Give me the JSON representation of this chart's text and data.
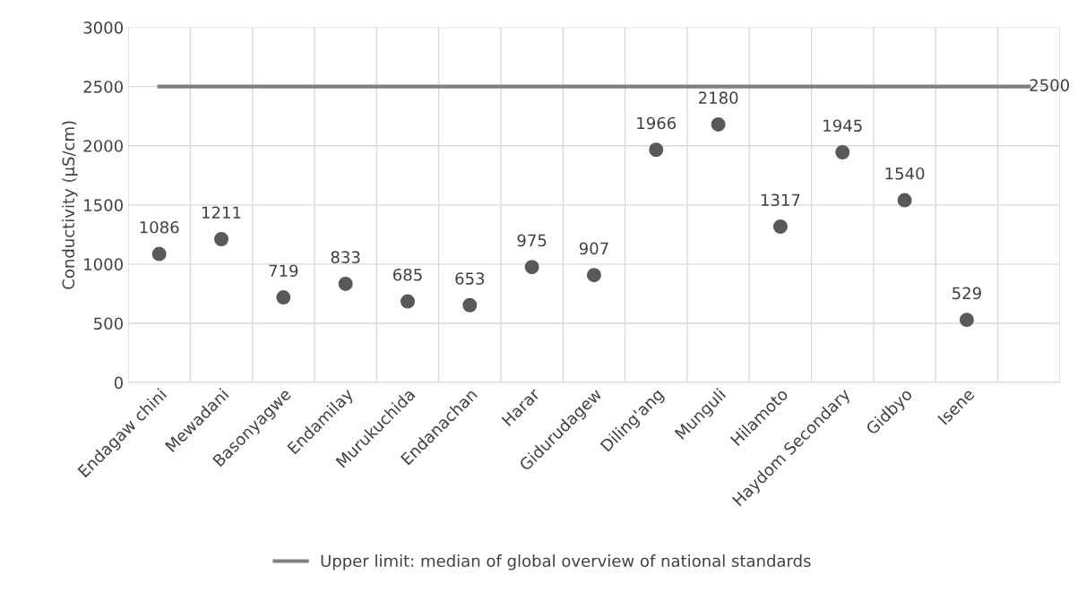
{
  "chart_data": {
    "type": "scatter",
    "ylabel": "Conductivity (µS/cm)",
    "categories": [
      "Endagaw chini",
      "Mewadani",
      "Basonyagwe",
      "Endamilay",
      "Murukuchida",
      "Endanachan",
      "Harar",
      "Gidurudagew",
      "Diling'ang",
      "Munguli",
      "Hilamoto",
      "Haydom Secondary",
      "Gidbyo",
      "Isene",
      null
    ],
    "series": [
      {
        "color": "#595959",
        "marker": "circle",
        "values": [
          1086,
          1211,
          719,
          833,
          685,
          653,
          975,
          907,
          1966,
          2180,
          1317,
          1945,
          1540,
          529,
          null
        ],
        "value_labels": [
          "1086",
          "1211",
          "719",
          "833",
          "685",
          "653",
          "975",
          "907",
          "1966",
          "2180",
          "1317",
          "1945",
          "1540",
          "529",
          null
        ]
      },
      {
        "type": "line",
        "name": "Upper limit: median of global overview of national standards",
        "color": "#808080",
        "marker": "none",
        "values": [
          2500,
          2500,
          2500,
          2500,
          2500,
          2500,
          2500,
          2500,
          2500,
          2500,
          2500,
          2500,
          2500,
          2500,
          2500
        ],
        "value_labels": [
          null,
          null,
          null,
          null,
          null,
          null,
          null,
          null,
          null,
          null,
          null,
          null,
          null,
          null,
          "2500"
        ]
      }
    ],
    "ylim": [
      0,
      3000
    ],
    "yticks": [
      0,
      500,
      1000,
      1500,
      2000,
      2500,
      3000
    ],
    "grid": true,
    "legend": "bottom"
  }
}
